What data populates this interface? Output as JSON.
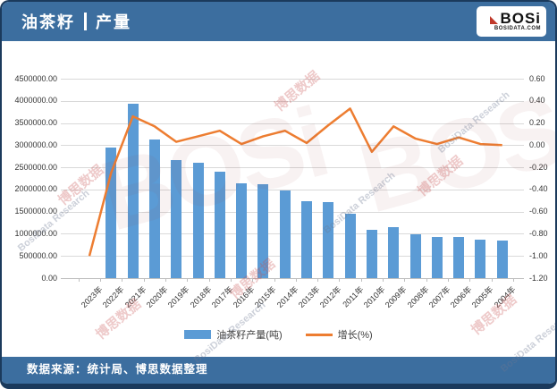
{
  "header": {
    "title_main": "油茶籽",
    "title_sub": "产量",
    "bg_color": "#3C6E9F",
    "border_color": "#1B3A5C"
  },
  "logo": {
    "text": "BOSi",
    "caption": "BOSIDATA.COM",
    "accent_color": "#C0392B"
  },
  "footer": {
    "source_label": "数据来源：统计局、博思数据整理"
  },
  "watermark": {
    "cn": "博思数据",
    "en": "BosiData Research",
    "logo": "BOSi"
  },
  "chart_data": {
    "type": "bar",
    "title": "油茶籽产量",
    "categories": [
      "2023年",
      "2022年",
      "2021年",
      "2020年",
      "2019年",
      "2018年",
      "2017年",
      "2016年",
      "2015年",
      "2014年",
      "2013年",
      "2012年",
      "2011年",
      "2010年",
      "2009年",
      "2008年",
      "2007年",
      "2006年",
      "2005年",
      "2004年"
    ],
    "series": [
      {
        "name": "油茶籽产量(吨)",
        "type": "bar",
        "color": "#5B9BD5",
        "axis": "left",
        "values": [
          0,
          2950000,
          3930000,
          3120000,
          2670000,
          2600000,
          2410000,
          2140000,
          2120000,
          1970000,
          1740000,
          1710000,
          1450000,
          1090000,
          1160000,
          990000,
          930000,
          920000,
          860000,
          850000
        ]
      },
      {
        "name": "增长(%)",
        "type": "line",
        "color": "#ED7D31",
        "axis": "right",
        "values": [
          -1.0,
          -0.25,
          0.26,
          0.17,
          0.03,
          0.08,
          0.13,
          0.01,
          0.08,
          0.13,
          0.02,
          0.18,
          0.33,
          -0.06,
          0.17,
          0.06,
          0.01,
          0.07,
          0.01,
          0.0
        ]
      }
    ],
    "left_axis": {
      "min": 0,
      "max": 4500000,
      "step": 500000,
      "ticks": [
        "4500000.00",
        "4000000.00",
        "3500000.00",
        "3000000.00",
        "2500000.00",
        "2000000.00",
        "1500000.00",
        "1000000.00",
        "500000.00",
        "0.00"
      ]
    },
    "right_axis": {
      "min": -1.2,
      "max": 0.6,
      "step": 0.2,
      "ticks": [
        "0.60",
        "0.40",
        "0.20",
        "0.00",
        "-0.20",
        "-0.40",
        "-0.60",
        "-0.80",
        "-1.00",
        "-1.20"
      ]
    },
    "grid": true,
    "legend_position": "bottom"
  }
}
